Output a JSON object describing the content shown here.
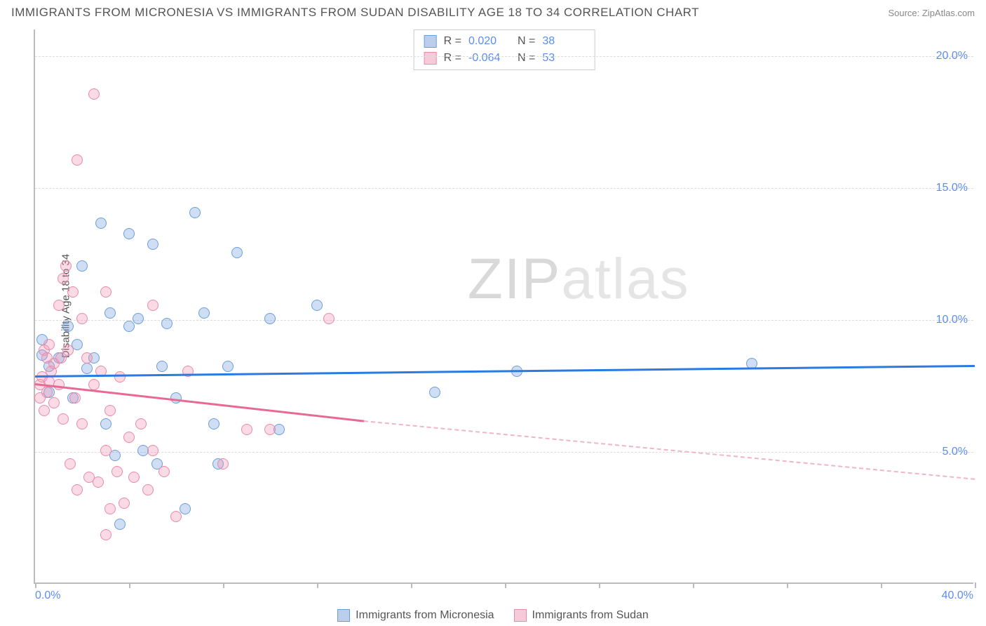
{
  "title": "IMMIGRANTS FROM MICRONESIA VS IMMIGRANTS FROM SUDAN DISABILITY AGE 18 TO 34 CORRELATION CHART",
  "source_label": "Source: ZipAtlas.com",
  "ylabel": "Disability Age 18 to 34",
  "watermark": {
    "bold": "ZIP",
    "light": "atlas"
  },
  "chart": {
    "type": "scatter-with-trend",
    "background": "#ffffff",
    "grid_color": "#dddddd",
    "axis_color": "#bbbbbb",
    "xlim": [
      0,
      40
    ],
    "ylim": [
      0,
      21
    ],
    "ytick_labels": [
      "5.0%",
      "10.0%",
      "15.0%",
      "20.0%"
    ],
    "ytick_values": [
      5,
      10,
      15,
      20
    ],
    "xtick_values": [
      0,
      4,
      8,
      12,
      16,
      20,
      24,
      28,
      32,
      36,
      40
    ],
    "xlabel_min": "0.0%",
    "xlabel_max": "40.0%",
    "ylabel_color": "#5b8def",
    "series": [
      {
        "key": "micronesia",
        "label": "Immigrants from Micronesia",
        "color_fill": "rgba(120,160,220,0.35)",
        "color_stroke": "#6a9edb",
        "trend_color": "#2a7ae2",
        "R": "0.020",
        "N": "38",
        "trend": {
          "x1": 0,
          "y1": 7.9,
          "x2": 40,
          "y2": 8.3
        },
        "points": [
          [
            0.3,
            9.2
          ],
          [
            0.3,
            8.6
          ],
          [
            0.6,
            8.2
          ],
          [
            0.6,
            7.2
          ],
          [
            1.0,
            8.5
          ],
          [
            1.4,
            9.7
          ],
          [
            1.6,
            7.0
          ],
          [
            2.2,
            8.1
          ],
          [
            2.5,
            8.5
          ],
          [
            2.8,
            13.6
          ],
          [
            3.0,
            6.0
          ],
          [
            3.2,
            10.2
          ],
          [
            3.4,
            4.8
          ],
          [
            3.6,
            2.2
          ],
          [
            4.0,
            13.2
          ],
          [
            4.0,
            9.7
          ],
          [
            4.4,
            10.0
          ],
          [
            4.6,
            5.0
          ],
          [
            5.0,
            12.8
          ],
          [
            5.2,
            4.5
          ],
          [
            5.4,
            8.2
          ],
          [
            5.6,
            9.8
          ],
          [
            6.0,
            7.0
          ],
          [
            6.4,
            2.8
          ],
          [
            6.8,
            14.0
          ],
          [
            7.2,
            10.2
          ],
          [
            7.6,
            6.0
          ],
          [
            7.8,
            4.5
          ],
          [
            8.2,
            8.2
          ],
          [
            8.6,
            12.5
          ],
          [
            10.0,
            10.0
          ],
          [
            10.4,
            5.8
          ],
          [
            12.0,
            10.5
          ],
          [
            17.0,
            7.2
          ],
          [
            30.5,
            8.3
          ],
          [
            20.5,
            8.0
          ],
          [
            1.8,
            9.0
          ],
          [
            2.0,
            12.0
          ]
        ]
      },
      {
        "key": "sudan",
        "label": "Immigrants from Sudan",
        "color_fill": "rgba(240,150,180,0.35)",
        "color_stroke": "#e88aa8",
        "trend_color": "#e76a94",
        "trend_dash_color": "#f0b5c8",
        "R": "-0.064",
        "N": "53",
        "trend_solid": {
          "x1": 0,
          "y1": 7.6,
          "x2": 14,
          "y2": 6.2
        },
        "trend_dash": {
          "x1": 14,
          "y1": 6.2,
          "x2": 40,
          "y2": 4.0
        },
        "points": [
          [
            0.2,
            7.5
          ],
          [
            0.2,
            7.0
          ],
          [
            0.3,
            7.8
          ],
          [
            0.4,
            8.8
          ],
          [
            0.4,
            6.5
          ],
          [
            0.5,
            8.5
          ],
          [
            0.5,
            7.2
          ],
          [
            0.6,
            9.0
          ],
          [
            0.6,
            7.6
          ],
          [
            0.7,
            8.0
          ],
          [
            0.8,
            6.8
          ],
          [
            0.8,
            8.3
          ],
          [
            1.0,
            10.5
          ],
          [
            1.0,
            7.5
          ],
          [
            1.1,
            8.5
          ],
          [
            1.2,
            11.5
          ],
          [
            1.2,
            6.2
          ],
          [
            1.3,
            12.0
          ],
          [
            1.4,
            8.8
          ],
          [
            1.5,
            4.5
          ],
          [
            1.6,
            11.0
          ],
          [
            1.7,
            7.0
          ],
          [
            1.8,
            3.5
          ],
          [
            1.8,
            16.0
          ],
          [
            2.0,
            10.0
          ],
          [
            2.0,
            6.0
          ],
          [
            2.2,
            8.5
          ],
          [
            2.3,
            4.0
          ],
          [
            2.5,
            18.5
          ],
          [
            2.5,
            7.5
          ],
          [
            2.7,
            3.8
          ],
          [
            2.8,
            8.0
          ],
          [
            3.0,
            11.0
          ],
          [
            3.0,
            5.0
          ],
          [
            3.2,
            2.8
          ],
          [
            3.2,
            6.5
          ],
          [
            3.5,
            4.2
          ],
          [
            3.6,
            7.8
          ],
          [
            3.8,
            3.0
          ],
          [
            4.0,
            5.5
          ],
          [
            4.2,
            4.0
          ],
          [
            4.5,
            6.0
          ],
          [
            4.8,
            3.5
          ],
          [
            5.0,
            10.5
          ],
          [
            5.0,
            5.0
          ],
          [
            5.5,
            4.2
          ],
          [
            6.0,
            2.5
          ],
          [
            6.5,
            8.0
          ],
          [
            8.0,
            4.5
          ],
          [
            9.0,
            5.8
          ],
          [
            10.0,
            5.8
          ],
          [
            12.5,
            10.0
          ],
          [
            3.0,
            1.8
          ]
        ]
      }
    ]
  },
  "stats_labels": {
    "R": "R =",
    "N": "N ="
  }
}
